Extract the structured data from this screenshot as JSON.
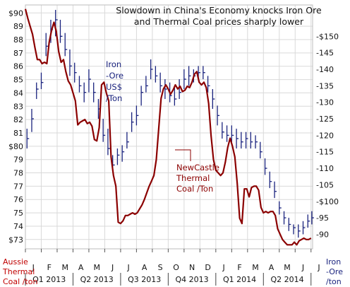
{
  "chart_data": {
    "type": "line",
    "title": "Slowdown in China's Economy knocks Iron Ore and Thermal Coal prices sharply lower",
    "title_lines": [
      "Slowdown in China's Economy knocks Iron Ore",
      "and Thermal Coal prices sharply lower"
    ],
    "left_axis": {
      "label_lines": [
        "Aussie",
        "Thermal",
        "Coal /ton"
      ],
      "ylim": [
        72.3,
        90.6
      ],
      "ticks": [
        {
          "v": 90,
          "t": "$90"
        },
        {
          "v": 89,
          "t": "89"
        },
        {
          "v": 88,
          "t": "88"
        },
        {
          "v": 87,
          "t": "87"
        },
        {
          "v": 86,
          "t": "86"
        },
        {
          "v": 85,
          "t": "85"
        },
        {
          "v": 84,
          "t": "84"
        },
        {
          "v": 83,
          "t": "83"
        },
        {
          "v": 82,
          "t": "82"
        },
        {
          "v": 81,
          "t": "81"
        },
        {
          "v": 80,
          "t": "$80"
        },
        {
          "v": 79,
          "t": "79"
        },
        {
          "v": 78,
          "t": "78"
        },
        {
          "v": 77,
          "t": "77"
        },
        {
          "v": 76,
          "t": "76"
        },
        {
          "v": 75,
          "t": "75"
        },
        {
          "v": 74,
          "t": "74"
        },
        {
          "v": 73,
          "t": "$73"
        }
      ]
    },
    "right_axis": {
      "label_lines": [
        "Iron",
        "-Ore",
        "/ton"
      ],
      "ylim": [
        85.6,
        159.5
      ],
      "ticks": [
        {
          "v": 150,
          "t": "-$150"
        },
        {
          "v": 145,
          "t": "-145"
        },
        {
          "v": 140,
          "t": "-140"
        },
        {
          "v": 135,
          "t": "-135"
        },
        {
          "v": 130,
          "t": "-130"
        },
        {
          "v": 125,
          "t": "-125"
        },
        {
          "v": 120,
          "t": "-120"
        },
        {
          "v": 115,
          "t": "-115"
        },
        {
          "v": 110,
          "t": "-110"
        },
        {
          "v": 105,
          "t": "-105"
        },
        {
          "v": 100,
          "t": "-$100"
        },
        {
          "v": 95,
          "t": "-95"
        },
        {
          "v": 90,
          "t": "-90"
        }
      ]
    },
    "x_axis": {
      "range": [
        0,
        18.1
      ],
      "months": [
        "J",
        "F",
        "M",
        "A",
        "M",
        "J",
        "J",
        "A",
        "S",
        "O",
        "N",
        "D",
        "J",
        "F",
        "M",
        "A",
        "M",
        "J",
        "J"
      ],
      "quarters": [
        {
          "label": "Q1 2013",
          "from": 0,
          "to": 3
        },
        {
          "label": "Q2 2013",
          "from": 3,
          "to": 6
        },
        {
          "label": "Q3 2013",
          "from": 6,
          "to": 9
        },
        {
          "label": "Q4 2013",
          "from": 9,
          "to": 12
        },
        {
          "label": "Q1 2014",
          "from": 12,
          "to": 15
        },
        {
          "label": "Q2 2014",
          "from": 15,
          "to": 18
        }
      ]
    },
    "annotations": {
      "iron": [
        "Iron",
        "-Ore",
        "US$",
        "/Ton"
      ],
      "coal": [
        "NewCastle",
        "Thermal",
        "Coal /Ton"
      ]
    },
    "colors": {
      "coal": "#8b0000",
      "iron": "#1a237e",
      "axis_left": "#c00000",
      "axis_right": "#1a237e",
      "grid": "#d9d9d9"
    },
    "series": [
      {
        "name": "NewCastle Thermal Coal /Ton",
        "axis": "left",
        "x": [
          0,
          0.15,
          0.3,
          0.45,
          0.6,
          0.75,
          0.9,
          1.05,
          1.2,
          1.35,
          1.5,
          1.65,
          1.8,
          1.95,
          2.1,
          2.25,
          2.4,
          2.55,
          2.7,
          2.85,
          3.0,
          3.15,
          3.3,
          3.45,
          3.6,
          3.75,
          3.9,
          4.05,
          4.2,
          4.35,
          4.5,
          4.65,
          4.8,
          4.95,
          5.1,
          5.25,
          5.4,
          5.55,
          5.7,
          5.85,
          6.0,
          6.15,
          6.3,
          6.45,
          6.6,
          6.75,
          6.9,
          7.05,
          7.2,
          7.35,
          7.5,
          7.65,
          7.8,
          7.95,
          8.1,
          8.25,
          8.4,
          8.55,
          8.7,
          8.85,
          9.0,
          9.15,
          9.3,
          9.45,
          9.6,
          9.75,
          9.9,
          10.05,
          10.2,
          10.35,
          10.5,
          10.65,
          10.8,
          10.95,
          11.1,
          11.25,
          11.4,
          11.55,
          11.7,
          11.85,
          12.0,
          12.15,
          12.3,
          12.45,
          12.6,
          12.75,
          12.9,
          13.05,
          13.2,
          13.35,
          13.5,
          13.65,
          13.8,
          13.95,
          14.1,
          14.25,
          14.4,
          14.55,
          14.7,
          14.85,
          15.0,
          15.15,
          15.3,
          15.45,
          15.6,
          15.75,
          15.9,
          16.05,
          16.2,
          16.35,
          16.5,
          16.65,
          16.8,
          16.95,
          17.1,
          17.25,
          17.4,
          17.55,
          17.7,
          17.85,
          18.0
        ],
        "values": [
          90.3,
          89.6,
          89.0,
          88.4,
          87.4,
          86.5,
          86.5,
          86.2,
          86.3,
          86.2,
          87.8,
          88.7,
          89.3,
          88.6,
          87.1,
          86.3,
          86.5,
          85.6,
          84.9,
          84.6,
          84.0,
          83.4,
          81.6,
          81.8,
          81.9,
          82.0,
          81.7,
          81.8,
          81.5,
          80.5,
          80.4,
          81.4,
          84.6,
          84.8,
          84.0,
          83.4,
          79.2,
          77.8,
          77.0,
          74.3,
          74.2,
          74.4,
          74.8,
          74.8,
          74.9,
          75.0,
          74.9,
          75.0,
          75.3,
          75.6,
          76.0,
          76.5,
          77.0,
          77.4,
          77.8,
          79.0,
          81.3,
          83.6,
          84.3,
          84.6,
          84.3,
          83.9,
          84.2,
          84.6,
          84.3,
          84.5,
          84.1,
          84.2,
          84.5,
          84.4,
          84.8,
          85.4,
          85.6,
          84.8,
          84.6,
          84.8,
          84.4,
          83.2,
          80.8,
          79.0,
          78.2,
          78.0,
          77.8,
          78.0,
          78.8,
          79.9,
          80.6,
          80.0,
          79.2,
          77.2,
          74.6,
          74.2,
          76.8,
          76.8,
          76.2,
          76.9,
          77.0,
          77.0,
          76.7,
          75.4,
          75.0,
          75.1,
          75.0,
          75.1,
          75.1,
          74.8,
          73.8,
          73.4,
          73.0,
          72.8,
          72.6,
          72.6,
          72.6,
          72.8,
          72.6,
          72.9,
          73.0,
          73.1,
          73.0,
          73.0,
          73.1
        ]
      },
      {
        "name": "Iron-Ore US$ /Ton",
        "axis": "right",
        "type": "hlc",
        "x": [
          0.1,
          0.4,
          0.7,
          1.0,
          1.3,
          1.6,
          1.9,
          2.2,
          2.5,
          2.8,
          3.1,
          3.4,
          3.7,
          4.0,
          4.3,
          4.6,
          4.9,
          5.2,
          5.5,
          5.8,
          6.1,
          6.4,
          6.7,
          7.0,
          7.3,
          7.6,
          7.9,
          8.2,
          8.5,
          8.8,
          9.1,
          9.4,
          9.7,
          10.0,
          10.3,
          10.6,
          10.9,
          11.2,
          11.5,
          11.8,
          12.1,
          12.4,
          12.7,
          13.0,
          13.3,
          13.6,
          13.9,
          14.2,
          14.5,
          14.8,
          15.1,
          15.4,
          15.7,
          16.0,
          16.3,
          16.6,
          16.9,
          17.2,
          17.5,
          17.8,
          18.05
        ],
        "high": [
          122,
          128,
          136,
          139,
          151,
          155,
          158,
          155,
          151,
          146,
          142,
          138,
          136,
          140,
          136,
          131,
          125,
          122,
          114,
          116,
          117,
          121,
          127,
          129,
          135,
          138,
          143,
          141,
          139,
          137,
          136,
          135,
          137,
          140,
          141,
          140,
          141,
          141,
          138,
          134,
          129,
          124,
          123,
          123,
          122,
          121,
          121,
          121,
          120,
          118,
          113,
          109,
          106,
          100,
          97,
          95,
          93,
          93,
          94,
          96,
          97
        ],
        "low": [
          116,
          121,
          131,
          134,
          144,
          148,
          150,
          148,
          144,
          138,
          136,
          133,
          130,
          133,
          130,
          125,
          118,
          114,
          109,
          111,
          112,
          116,
          121,
          123,
          129,
          133,
          137,
          136,
          133,
          131,
          130,
          129,
          131,
          134,
          135,
          136,
          137,
          137,
          133,
          128,
          123,
          119,
          118,
          117,
          116,
          116,
          116,
          116,
          116,
          113,
          108,
          104,
          101,
          96,
          93,
          91,
          90,
          89,
          90,
          92,
          93
        ],
        "close": [
          119,
          125,
          134,
          136,
          147,
          152,
          155,
          150,
          146,
          141,
          139,
          135,
          133,
          137,
          133,
          128,
          120,
          116,
          111,
          114,
          115,
          118,
          124,
          126,
          133,
          135,
          140,
          138,
          135,
          134,
          132,
          131,
          133,
          137,
          138,
          138,
          139,
          139,
          135,
          131,
          126,
          121,
          120,
          120,
          119,
          118,
          119,
          118,
          118,
          115,
          110,
          106,
          103,
          98,
          95,
          93,
          92,
          91,
          92,
          94,
          95
        ]
      }
    ]
  }
}
